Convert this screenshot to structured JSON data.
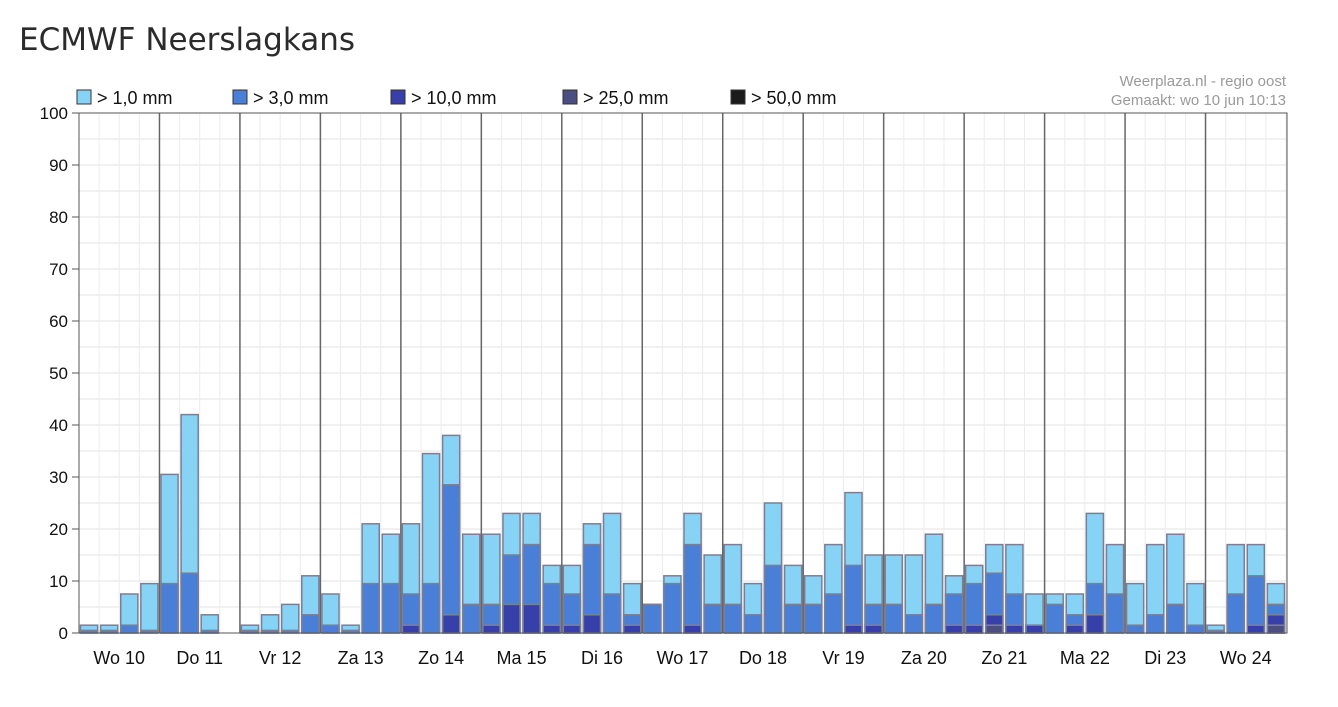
{
  "page": {
    "title": "ECMWF Neerslagkans"
  },
  "credits": {
    "source": "Weerplaza.nl - regio oost",
    "made": "Gemaakt: wo 10 jun 10:13"
  },
  "chart_data": {
    "type": "bar",
    "stacked": false,
    "overlay": true,
    "title": "ECMWF Neerslagkans",
    "xlabel": "",
    "ylabel": "",
    "ylim": [
      0,
      100
    ],
    "yticks": [
      0,
      10,
      20,
      30,
      40,
      50,
      60,
      70,
      80,
      90,
      100
    ],
    "grid": true,
    "legend_position": "top",
    "day_labels": [
      "Wo 10",
      "Do 11",
      "Vr 12",
      "Za 13",
      "Zo 14",
      "Ma 15",
      "Di 16",
      "Wo 17",
      "Do 18",
      "Vr 19",
      "Za 20",
      "Zo 21",
      "Ma 22",
      "Di 23",
      "Wo 24"
    ],
    "day_start_slot": [
      0,
      4,
      8,
      12,
      16,
      20,
      24,
      28,
      32,
      36,
      40,
      44,
      48,
      52,
      56
    ],
    "slot_count": 60,
    "first_slot_offset": 0.0,
    "series": [
      {
        "name": "> 1,0 mm",
        "color": "#87d3f5",
        "values": [
          1.5,
          1.5,
          7.5,
          9.5,
          30.5,
          42,
          3.5,
          null,
          1.5,
          3.5,
          5.5,
          11,
          7.5,
          1.5,
          21,
          19,
          21,
          34.5,
          38,
          19,
          19,
          23,
          23,
          13,
          13,
          21,
          23,
          9.5,
          5.5,
          11,
          23,
          15,
          17,
          9.5,
          25,
          13,
          11,
          17,
          27,
          15,
          15,
          15,
          19,
          11,
          13,
          17,
          17,
          7.5,
          7.5,
          7.5,
          23,
          17,
          9.5,
          17,
          19,
          9.5,
          1.5,
          17,
          17,
          9.5
        ]
      },
      {
        "name": "> 3,0 mm",
        "color": "#4a7fd8",
        "values": [
          0.5,
          0.5,
          1.5,
          0.5,
          9.5,
          11.5,
          0.5,
          null,
          0.5,
          0.5,
          0.5,
          3.5,
          1.5,
          0.5,
          9.5,
          9.5,
          7.5,
          9.5,
          28.5,
          5.5,
          5.5,
          15,
          17,
          9.5,
          7.5,
          17,
          7.5,
          3.5,
          5.5,
          9.5,
          17,
          5.5,
          5.5,
          3.5,
          13,
          5.5,
          5.5,
          7.5,
          13,
          5.5,
          5.5,
          3.5,
          5.5,
          7.5,
          9.5,
          11.5,
          7.5,
          1.5,
          5.5,
          3.5,
          9.5,
          7.5,
          1.5,
          3.5,
          5.5,
          1.5,
          0.5,
          7.5,
          11,
          5.5
        ]
      },
      {
        "name": "> 10,0 mm",
        "color": "#3640a8",
        "values": [
          0,
          0,
          0,
          0,
          0,
          0,
          0,
          null,
          0,
          0,
          0,
          0,
          0,
          0,
          0,
          0,
          1.5,
          0,
          3.5,
          0,
          1.5,
          5.5,
          5.5,
          1.5,
          1.5,
          3.5,
          0,
          1.5,
          0,
          0,
          1.5,
          0,
          0,
          0,
          0,
          0,
          0,
          0,
          1.5,
          1.5,
          0,
          0,
          0,
          1.5,
          1.5,
          3.5,
          1.5,
          1.5,
          0,
          1.5,
          3.5,
          0,
          0,
          0,
          0,
          0,
          0,
          0,
          1.5,
          3.5
        ]
      },
      {
        "name": "> 25,0 mm",
        "color": "#4a4e80",
        "values": [
          0,
          0,
          0,
          0,
          0,
          0,
          0,
          null,
          0,
          0,
          0,
          0,
          0,
          0,
          0,
          0,
          0,
          0,
          0,
          0,
          0,
          0,
          0,
          0,
          0,
          0,
          0,
          0,
          0,
          0,
          0,
          0,
          0,
          0,
          0,
          0,
          0,
          0,
          0,
          0,
          0,
          0,
          0,
          0,
          0,
          1.5,
          0,
          0,
          0,
          0,
          0,
          0,
          0,
          0,
          0,
          0,
          0,
          0,
          0,
          1.5
        ]
      },
      {
        "name": "> 50,0 mm",
        "color": "#1b1b1b",
        "values": [
          0,
          0,
          0,
          0,
          0,
          0,
          0,
          null,
          0,
          0,
          0,
          0,
          0,
          0,
          0,
          0,
          0,
          0,
          0,
          0,
          0,
          0,
          0,
          0,
          0,
          0,
          0,
          0,
          0,
          0,
          0,
          0,
          0,
          0,
          0,
          0,
          0,
          0,
          0,
          0,
          0,
          0,
          0,
          0,
          0,
          0,
          0,
          0,
          0,
          0,
          0,
          0,
          0,
          0,
          0,
          0,
          0,
          0,
          0,
          0
        ]
      }
    ]
  }
}
